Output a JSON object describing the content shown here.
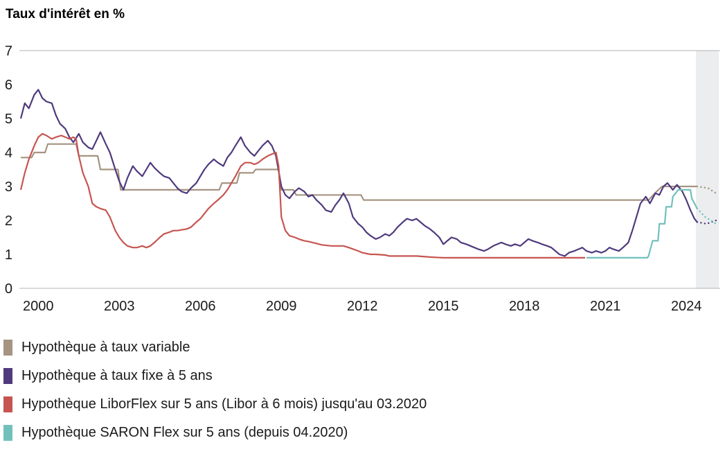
{
  "title": "Taux d'intérêt en %",
  "chart_data": {
    "type": "line",
    "title": "Taux d'intérêt en %",
    "ylabel": "Taux d'intérêt en %",
    "ylim": [
      0,
      7
    ],
    "yticks": [
      0,
      1,
      2,
      3,
      4,
      5,
      6,
      7
    ],
    "xlim": [
      1999.35,
      2025.2
    ],
    "xticks": [
      2000,
      2003,
      2006,
      2009,
      2012,
      2015,
      2018,
      2021,
      2024
    ],
    "grid": false,
    "legend_position": "bottom",
    "axis_line_color": "#b4b4b4",
    "forecast_band": {
      "from": 2024.35,
      "to": 2025.2,
      "color": "#ebedee"
    },
    "series": [
      {
        "name": "Hypothèque à taux variable",
        "color": "#a59482",
        "points": [
          [
            1999.35,
            3.85
          ],
          [
            1999.75,
            3.85
          ],
          [
            1999.85,
            4.0
          ],
          [
            2000.25,
            4.0
          ],
          [
            2000.35,
            4.25
          ],
          [
            2001.4,
            4.25
          ],
          [
            2001.5,
            3.9
          ],
          [
            2002.2,
            3.9
          ],
          [
            2002.3,
            3.5
          ],
          [
            2002.95,
            3.5
          ],
          [
            2003.05,
            2.9
          ],
          [
            2006.7,
            2.9
          ],
          [
            2006.8,
            3.1
          ],
          [
            2007.35,
            3.1
          ],
          [
            2007.45,
            3.4
          ],
          [
            2007.95,
            3.4
          ],
          [
            2008.05,
            3.5
          ],
          [
            2008.9,
            3.5
          ],
          [
            2009.0,
            2.9
          ],
          [
            2009.45,
            2.9
          ],
          [
            2009.55,
            2.75
          ],
          [
            2011.95,
            2.75
          ],
          [
            2012.05,
            2.6
          ],
          [
            2022.6,
            2.6
          ],
          [
            2022.9,
            2.85
          ],
          [
            2023.1,
            3.0
          ],
          [
            2024.4,
            3.0
          ]
        ],
        "forecast": [
          [
            2024.4,
            3.0
          ],
          [
            2024.8,
            2.95
          ],
          [
            2025.1,
            2.8
          ]
        ]
      },
      {
        "name": "Hypothèque à taux fixe à 5 ans",
        "color": "#4f3a7d",
        "points": [
          [
            1999.35,
            5.0
          ],
          [
            1999.5,
            5.45
          ],
          [
            1999.65,
            5.3
          ],
          [
            1999.85,
            5.7
          ],
          [
            2000.0,
            5.85
          ],
          [
            2000.15,
            5.6
          ],
          [
            2000.3,
            5.5
          ],
          [
            2000.5,
            5.45
          ],
          [
            2000.65,
            5.1
          ],
          [
            2000.8,
            4.85
          ],
          [
            2001.0,
            4.7
          ],
          [
            2001.15,
            4.45
          ],
          [
            2001.3,
            4.3
          ],
          [
            2001.5,
            4.55
          ],
          [
            2001.65,
            4.3
          ],
          [
            2001.85,
            4.15
          ],
          [
            2002.0,
            4.1
          ],
          [
            2002.15,
            4.35
          ],
          [
            2002.3,
            4.6
          ],
          [
            2002.5,
            4.25
          ],
          [
            2002.65,
            4.0
          ],
          [
            2002.85,
            3.5
          ],
          [
            2003.0,
            3.15
          ],
          [
            2003.15,
            2.9
          ],
          [
            2003.3,
            3.25
          ],
          [
            2003.5,
            3.6
          ],
          [
            2003.65,
            3.45
          ],
          [
            2003.85,
            3.3
          ],
          [
            2004.0,
            3.5
          ],
          [
            2004.15,
            3.7
          ],
          [
            2004.3,
            3.55
          ],
          [
            2004.5,
            3.4
          ],
          [
            2004.65,
            3.3
          ],
          [
            2004.85,
            3.25
          ],
          [
            2005.0,
            3.1
          ],
          [
            2005.15,
            2.95
          ],
          [
            2005.3,
            2.85
          ],
          [
            2005.5,
            2.8
          ],
          [
            2005.65,
            2.95
          ],
          [
            2005.85,
            3.1
          ],
          [
            2006.0,
            3.3
          ],
          [
            2006.15,
            3.5
          ],
          [
            2006.3,
            3.65
          ],
          [
            2006.5,
            3.8
          ],
          [
            2006.65,
            3.7
          ],
          [
            2006.85,
            3.6
          ],
          [
            2007.0,
            3.85
          ],
          [
            2007.15,
            4.0
          ],
          [
            2007.3,
            4.2
          ],
          [
            2007.5,
            4.45
          ],
          [
            2007.65,
            4.2
          ],
          [
            2007.85,
            4.0
          ],
          [
            2008.0,
            3.9
          ],
          [
            2008.15,
            4.05
          ],
          [
            2008.3,
            4.2
          ],
          [
            2008.5,
            4.35
          ],
          [
            2008.65,
            4.2
          ],
          [
            2008.8,
            3.9
          ],
          [
            2009.0,
            3.0
          ],
          [
            2009.15,
            2.75
          ],
          [
            2009.3,
            2.65
          ],
          [
            2009.5,
            2.85
          ],
          [
            2009.65,
            2.95
          ],
          [
            2009.85,
            2.85
          ],
          [
            2010.0,
            2.7
          ],
          [
            2010.15,
            2.75
          ],
          [
            2010.3,
            2.6
          ],
          [
            2010.5,
            2.45
          ],
          [
            2010.65,
            2.3
          ],
          [
            2010.85,
            2.25
          ],
          [
            2011.0,
            2.45
          ],
          [
            2011.15,
            2.6
          ],
          [
            2011.3,
            2.8
          ],
          [
            2011.5,
            2.5
          ],
          [
            2011.65,
            2.1
          ],
          [
            2011.85,
            1.9
          ],
          [
            2012.0,
            1.8
          ],
          [
            2012.15,
            1.65
          ],
          [
            2012.3,
            1.55
          ],
          [
            2012.5,
            1.45
          ],
          [
            2012.65,
            1.5
          ],
          [
            2012.85,
            1.6
          ],
          [
            2013.0,
            1.55
          ],
          [
            2013.15,
            1.65
          ],
          [
            2013.3,
            1.8
          ],
          [
            2013.5,
            1.95
          ],
          [
            2013.65,
            2.05
          ],
          [
            2013.85,
            2.0
          ],
          [
            2014.0,
            2.05
          ],
          [
            2014.15,
            1.95
          ],
          [
            2014.3,
            1.85
          ],
          [
            2014.5,
            1.75
          ],
          [
            2014.65,
            1.65
          ],
          [
            2014.85,
            1.5
          ],
          [
            2015.0,
            1.3
          ],
          [
            2015.15,
            1.4
          ],
          [
            2015.3,
            1.5
          ],
          [
            2015.5,
            1.45
          ],
          [
            2015.65,
            1.35
          ],
          [
            2015.85,
            1.3
          ],
          [
            2016.0,
            1.25
          ],
          [
            2016.15,
            1.2
          ],
          [
            2016.3,
            1.15
          ],
          [
            2016.5,
            1.1
          ],
          [
            2016.65,
            1.15
          ],
          [
            2016.85,
            1.25
          ],
          [
            2017.0,
            1.3
          ],
          [
            2017.15,
            1.35
          ],
          [
            2017.3,
            1.3
          ],
          [
            2017.5,
            1.25
          ],
          [
            2017.65,
            1.3
          ],
          [
            2017.85,
            1.25
          ],
          [
            2018.0,
            1.35
          ],
          [
            2018.15,
            1.45
          ],
          [
            2018.3,
            1.4
          ],
          [
            2018.5,
            1.35
          ],
          [
            2018.65,
            1.3
          ],
          [
            2018.85,
            1.25
          ],
          [
            2019.0,
            1.2
          ],
          [
            2019.15,
            1.1
          ],
          [
            2019.3,
            1.0
          ],
          [
            2019.5,
            0.95
          ],
          [
            2019.65,
            1.05
          ],
          [
            2019.85,
            1.1
          ],
          [
            2020.0,
            1.15
          ],
          [
            2020.15,
            1.2
          ],
          [
            2020.3,
            1.1
          ],
          [
            2020.5,
            1.05
          ],
          [
            2020.65,
            1.1
          ],
          [
            2020.85,
            1.05
          ],
          [
            2021.0,
            1.1
          ],
          [
            2021.15,
            1.2
          ],
          [
            2021.3,
            1.15
          ],
          [
            2021.5,
            1.1
          ],
          [
            2021.65,
            1.2
          ],
          [
            2021.85,
            1.35
          ],
          [
            2022.0,
            1.7
          ],
          [
            2022.15,
            2.1
          ],
          [
            2022.3,
            2.5
          ],
          [
            2022.5,
            2.7
          ],
          [
            2022.65,
            2.5
          ],
          [
            2022.85,
            2.8
          ],
          [
            2023.0,
            2.75
          ],
          [
            2023.15,
            3.0
          ],
          [
            2023.3,
            3.1
          ],
          [
            2023.5,
            2.9
          ],
          [
            2023.65,
            3.05
          ],
          [
            2023.85,
            2.85
          ],
          [
            2024.0,
            2.6
          ],
          [
            2024.15,
            2.3
          ],
          [
            2024.3,
            2.05
          ],
          [
            2024.4,
            1.95
          ]
        ],
        "forecast": [
          [
            2024.4,
            1.95
          ],
          [
            2024.75,
            1.9
          ],
          [
            2025.1,
            2.0
          ]
        ]
      },
      {
        "name": "Hypothèque LiborFlex sur 5 ans (Libor à 6 mois) jusqu'au 03.2020",
        "color": "#c65551",
        "points": [
          [
            1999.35,
            2.9
          ],
          [
            1999.5,
            3.4
          ],
          [
            1999.65,
            3.8
          ],
          [
            1999.85,
            4.2
          ],
          [
            2000.0,
            4.45
          ],
          [
            2000.15,
            4.55
          ],
          [
            2000.3,
            4.5
          ],
          [
            2000.5,
            4.4
          ],
          [
            2000.65,
            4.45
          ],
          [
            2000.85,
            4.5
          ],
          [
            2001.0,
            4.45
          ],
          [
            2001.15,
            4.4
          ],
          [
            2001.3,
            4.45
          ],
          [
            2001.4,
            4.4
          ],
          [
            2001.5,
            3.9
          ],
          [
            2001.65,
            3.4
          ],
          [
            2001.85,
            3.0
          ],
          [
            2002.0,
            2.5
          ],
          [
            2002.15,
            2.4
          ],
          [
            2002.3,
            2.35
          ],
          [
            2002.5,
            2.3
          ],
          [
            2002.65,
            2.1
          ],
          [
            2002.85,
            1.7
          ],
          [
            2003.0,
            1.5
          ],
          [
            2003.15,
            1.35
          ],
          [
            2003.3,
            1.25
          ],
          [
            2003.5,
            1.2
          ],
          [
            2003.65,
            1.2
          ],
          [
            2003.85,
            1.25
          ],
          [
            2004.0,
            1.2
          ],
          [
            2004.15,
            1.25
          ],
          [
            2004.3,
            1.35
          ],
          [
            2004.5,
            1.5
          ],
          [
            2004.65,
            1.6
          ],
          [
            2004.85,
            1.65
          ],
          [
            2005.0,
            1.7
          ],
          [
            2005.15,
            1.7
          ],
          [
            2005.3,
            1.72
          ],
          [
            2005.5,
            1.75
          ],
          [
            2005.65,
            1.8
          ],
          [
            2005.85,
            1.95
          ],
          [
            2006.0,
            2.05
          ],
          [
            2006.15,
            2.2
          ],
          [
            2006.3,
            2.35
          ],
          [
            2006.5,
            2.5
          ],
          [
            2006.65,
            2.6
          ],
          [
            2006.85,
            2.75
          ],
          [
            2007.0,
            2.9
          ],
          [
            2007.15,
            3.1
          ],
          [
            2007.3,
            3.3
          ],
          [
            2007.5,
            3.6
          ],
          [
            2007.65,
            3.7
          ],
          [
            2007.85,
            3.7
          ],
          [
            2008.0,
            3.65
          ],
          [
            2008.15,
            3.7
          ],
          [
            2008.3,
            3.8
          ],
          [
            2008.5,
            3.9
          ],
          [
            2008.65,
            3.95
          ],
          [
            2008.8,
            4.0
          ],
          [
            2008.9,
            3.6
          ],
          [
            2009.0,
            2.1
          ],
          [
            2009.15,
            1.7
          ],
          [
            2009.3,
            1.55
          ],
          [
            2009.5,
            1.5
          ],
          [
            2009.65,
            1.45
          ],
          [
            2009.85,
            1.4
          ],
          [
            2010.0,
            1.38
          ],
          [
            2010.3,
            1.32
          ],
          [
            2010.5,
            1.28
          ],
          [
            2010.85,
            1.25
          ],
          [
            2011.0,
            1.25
          ],
          [
            2011.3,
            1.25
          ],
          [
            2011.5,
            1.2
          ],
          [
            2011.85,
            1.1
          ],
          [
            2012.0,
            1.05
          ],
          [
            2012.3,
            1.0
          ],
          [
            2012.5,
            1.0
          ],
          [
            2012.85,
            0.98
          ],
          [
            2013.0,
            0.95
          ],
          [
            2013.5,
            0.95
          ],
          [
            2014.0,
            0.95
          ],
          [
            2014.5,
            0.92
          ],
          [
            2015.0,
            0.9
          ],
          [
            2016.0,
            0.9
          ],
          [
            2017.0,
            0.9
          ],
          [
            2018.0,
            0.9
          ],
          [
            2019.0,
            0.9
          ],
          [
            2020.0,
            0.9
          ],
          [
            2020.25,
            0.9
          ]
        ]
      },
      {
        "name": "Hypothèque SARON Flex sur 5 ans (depuis 04.2020)",
        "color": "#72c0bc",
        "points": [
          [
            2020.3,
            0.9
          ],
          [
            2021.5,
            0.9
          ],
          [
            2022.55,
            0.9
          ],
          [
            2022.6,
            0.95
          ],
          [
            2022.75,
            1.4
          ],
          [
            2022.95,
            1.4
          ],
          [
            2023.0,
            1.9
          ],
          [
            2023.2,
            1.9
          ],
          [
            2023.25,
            2.4
          ],
          [
            2023.45,
            2.4
          ],
          [
            2023.5,
            2.7
          ],
          [
            2023.7,
            2.9
          ],
          [
            2024.15,
            2.9
          ],
          [
            2024.2,
            2.65
          ],
          [
            2024.4,
            2.35
          ]
        ],
        "forecast": [
          [
            2024.4,
            2.35
          ],
          [
            2024.7,
            2.1
          ],
          [
            2025.1,
            1.9
          ]
        ]
      }
    ]
  },
  "legend": {
    "items": [
      {
        "label": "Hypothèque à taux variable",
        "color": "#a59482"
      },
      {
        "label": "Hypothèque à taux fixe à 5 ans",
        "color": "#4f3a7d"
      },
      {
        "label": "Hypothèque LiborFlex sur 5 ans (Libor à 6 mois) jusqu'au 03.2020",
        "color": "#c65551"
      },
      {
        "label": "Hypothèque SARON Flex sur 5 ans (depuis 04.2020)",
        "color": "#72c0bc"
      }
    ]
  }
}
